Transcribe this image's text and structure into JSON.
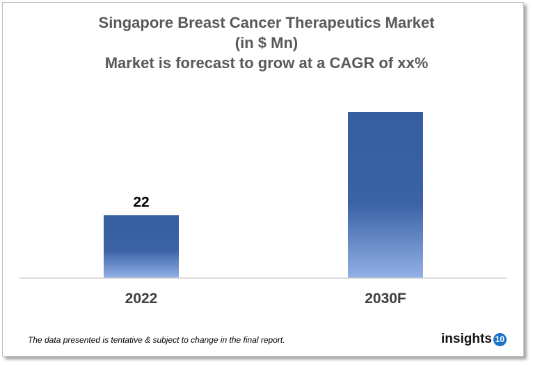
{
  "chart_data": {
    "type": "bar",
    "title": [
      "Singapore Breast Cancer Therapeutics Market",
      "(in $ Mn)",
      "Market is forecast to grow at a CAGR of xx%"
    ],
    "categories": [
      "2022",
      "2030F"
    ],
    "values": [
      22,
      58
    ],
    "data_labels": [
      "22",
      ""
    ],
    "ylim": [
      0,
      60
    ],
    "grid": false,
    "bar_color_top": "#355e9f",
    "bar_color_bottom": "#8eaae0"
  },
  "footer": {
    "note": "The data presented is tentative & subject to change in the final report.",
    "logo_text": "insights",
    "logo_badge": "10"
  }
}
